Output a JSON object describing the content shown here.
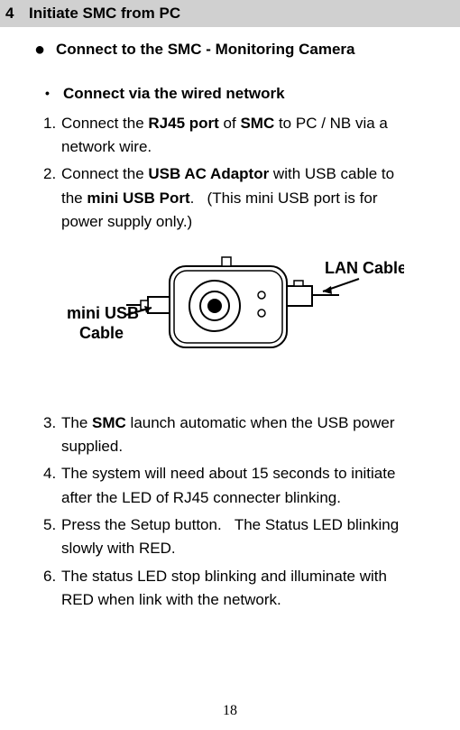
{
  "heading": {
    "num": "4",
    "title": "Initiate SMC from PC"
  },
  "sub1": {
    "bullet": "●",
    "text": "Connect to the SMC - Monitoring Camera"
  },
  "sub2": {
    "bullet": "•",
    "text": "Connect via the wired network"
  },
  "steps1": [
    {
      "n": "1.",
      "html": "Connect the <span class=\"b\">RJ45 port</span> of <span class=\"b\">SMC</span> to PC / NB via a",
      "cont": "network wire."
    },
    {
      "n": "2.",
      "html": "Connect the <span class=\"b\">USB AC Adaptor</span> with USB cable to",
      "cont": "the <span class=\"b\">mini USB Port</span>.&nbsp;&nbsp;&nbsp;(This mini USB port is for",
      "cont2": "power supply only.)"
    }
  ],
  "diagram": {
    "left_label1": "mini USB",
    "left_label2": "Cable",
    "right_label": "LAN Cable"
  },
  "steps2": [
    {
      "n": "3.",
      "html": "The <span class=\"b\">SMC</span> launch automatic when the USB power",
      "cont": "supplied."
    },
    {
      "n": "4.",
      "html": "The system will need about 15 seconds to initiate",
      "cont": "after the LED of RJ45 connecter blinking."
    },
    {
      "n": "5.",
      "html": "Press the Setup button.&nbsp;&nbsp;&nbsp;The Status LED blinking",
      "cont": "slowly with RED."
    },
    {
      "n": "6.",
      "html": "The status LED stop blinking and illuminate with",
      "cont": "RED when link with the network."
    }
  ],
  "pagenum": "18"
}
